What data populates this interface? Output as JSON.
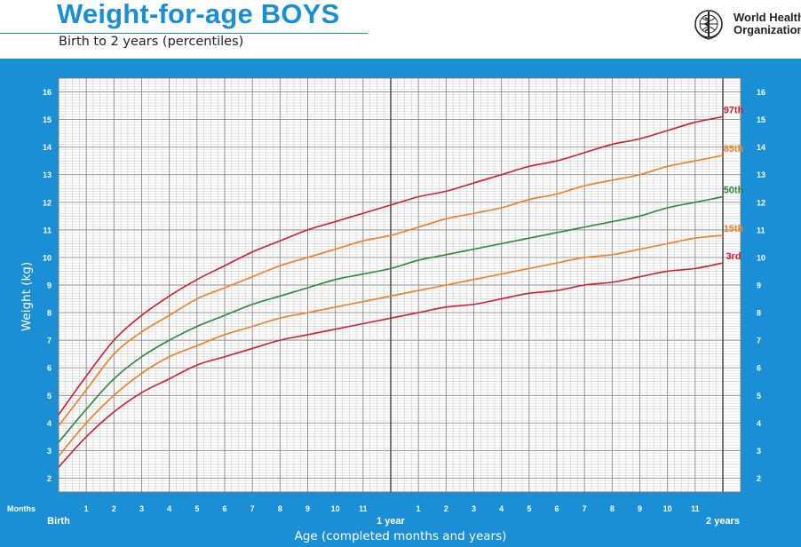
{
  "header": {
    "title": "Weight-for-age BOYS",
    "subtitle": "Birth to 2 years (percentiles)",
    "logo_line1": "World Health",
    "logo_line2": "Organization",
    "logo_icon": "who-emblem-icon"
  },
  "colors": {
    "panel_bg": "#1a8fd6",
    "grid_bg": "#ffffff",
    "grid_line": "#a9a9a9",
    "p97": "#d0202f",
    "p85": "#f07f23",
    "p50": "#2a8a3a",
    "p15": "#f07f23",
    "p3": "#d0202f"
  },
  "chart_data": {
    "type": "line",
    "title": "Weight-for-age BOYS",
    "subtitle": "Birth to 2 years (percentiles)",
    "xlabel": "Age (completed months and years)",
    "ylabel": "Weight (kg)",
    "xlim": [
      0,
      24
    ],
    "ylim": [
      1.5,
      16.5
    ],
    "grid": true,
    "months_label": "Months",
    "x_ticks": [
      {
        "x": 0,
        "label": "Birth",
        "bold": true
      },
      {
        "x": 1,
        "label": "1"
      },
      {
        "x": 2,
        "label": "2"
      },
      {
        "x": 3,
        "label": "3"
      },
      {
        "x": 4,
        "label": "4"
      },
      {
        "x": 5,
        "label": "5"
      },
      {
        "x": 6,
        "label": "6"
      },
      {
        "x": 7,
        "label": "7"
      },
      {
        "x": 8,
        "label": "8"
      },
      {
        "x": 9,
        "label": "9"
      },
      {
        "x": 10,
        "label": "10"
      },
      {
        "x": 11,
        "label": "11"
      },
      {
        "x": 12,
        "label": "1 year",
        "bold": true
      },
      {
        "x": 13,
        "label": "1"
      },
      {
        "x": 14,
        "label": "2"
      },
      {
        "x": 15,
        "label": "3"
      },
      {
        "x": 16,
        "label": "4"
      },
      {
        "x": 17,
        "label": "5"
      },
      {
        "x": 18,
        "label": "6"
      },
      {
        "x": 19,
        "label": "7"
      },
      {
        "x": 20,
        "label": "8"
      },
      {
        "x": 21,
        "label": "9"
      },
      {
        "x": 22,
        "label": "10"
      },
      {
        "x": 23,
        "label": "11"
      },
      {
        "x": 24,
        "label": "2 years",
        "bold": true
      }
    ],
    "y_ticks": [
      2,
      3,
      4,
      5,
      6,
      7,
      8,
      9,
      10,
      11,
      12,
      13,
      14,
      15,
      16
    ],
    "x": [
      0,
      1,
      2,
      3,
      4,
      5,
      6,
      7,
      8,
      9,
      10,
      11,
      12,
      13,
      14,
      15,
      16,
      17,
      18,
      19,
      20,
      21,
      22,
      23,
      24
    ],
    "series": [
      {
        "name": "97th",
        "color_key": "p97",
        "values": [
          4.3,
          5.7,
          7.0,
          7.9,
          8.6,
          9.2,
          9.7,
          10.2,
          10.6,
          11.0,
          11.3,
          11.6,
          11.9,
          12.2,
          12.4,
          12.7,
          13.0,
          13.3,
          13.5,
          13.8,
          14.1,
          14.3,
          14.6,
          14.9,
          15.1
        ]
      },
      {
        "name": "85th",
        "color_key": "p85",
        "values": [
          3.9,
          5.2,
          6.5,
          7.3,
          7.9,
          8.5,
          8.9,
          9.3,
          9.7,
          10.0,
          10.3,
          10.6,
          10.8,
          11.1,
          11.4,
          11.6,
          11.8,
          12.1,
          12.3,
          12.6,
          12.8,
          13.0,
          13.3,
          13.5,
          13.7
        ]
      },
      {
        "name": "50th",
        "color_key": "p50",
        "values": [
          3.3,
          4.5,
          5.6,
          6.4,
          7.0,
          7.5,
          7.9,
          8.3,
          8.6,
          8.9,
          9.2,
          9.4,
          9.6,
          9.9,
          10.1,
          10.3,
          10.5,
          10.7,
          10.9,
          11.1,
          11.3,
          11.5,
          11.8,
          12.0,
          12.2
        ]
      },
      {
        "name": "15th",
        "color_key": "p15",
        "values": [
          2.8,
          4.0,
          5.0,
          5.8,
          6.4,
          6.8,
          7.2,
          7.5,
          7.8,
          8.0,
          8.2,
          8.4,
          8.6,
          8.8,
          9.0,
          9.2,
          9.4,
          9.6,
          9.8,
          10.0,
          10.1,
          10.3,
          10.5,
          10.7,
          10.8
        ]
      },
      {
        "name": "3rd",
        "color_key": "p3",
        "values": [
          2.4,
          3.5,
          4.4,
          5.1,
          5.6,
          6.1,
          6.4,
          6.7,
          7.0,
          7.2,
          7.4,
          7.6,
          7.8,
          8.0,
          8.2,
          8.3,
          8.5,
          8.7,
          8.8,
          9.0,
          9.1,
          9.3,
          9.5,
          9.6,
          9.8
        ]
      }
    ]
  }
}
